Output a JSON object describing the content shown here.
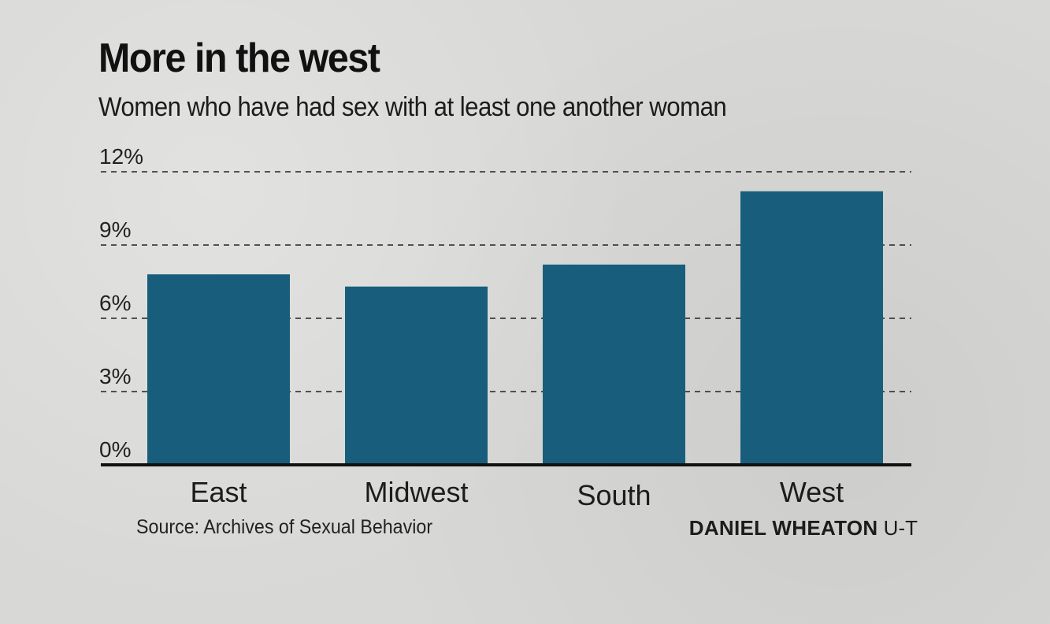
{
  "title": "More in the west",
  "subtitle": "Women who have had sex with at least one another woman",
  "source": "Source: Archives of Sexual Behavior",
  "credit": {
    "name": "DANIEL WHEATON",
    "org": "U-T"
  },
  "colors": {
    "bar": "#185e7c",
    "background": "#d8d8d6"
  },
  "chart_data": {
    "type": "bar",
    "title": "More in the west",
    "subtitle": "Women who have had sex with at least one another woman",
    "xlabel": "",
    "ylabel": "",
    "categories": [
      "East",
      "Midwest",
      "South",
      "West"
    ],
    "values": [
      7.8,
      7.3,
      8.2,
      11.2
    ],
    "unit": "%",
    "ylim": [
      0,
      12
    ],
    "yticks": [
      0,
      3,
      6,
      9,
      12
    ],
    "ytick_labels": [
      "0%",
      "3%",
      "6%",
      "9%",
      "12%"
    ],
    "grid": "dashed horizontal",
    "legend": "none"
  }
}
